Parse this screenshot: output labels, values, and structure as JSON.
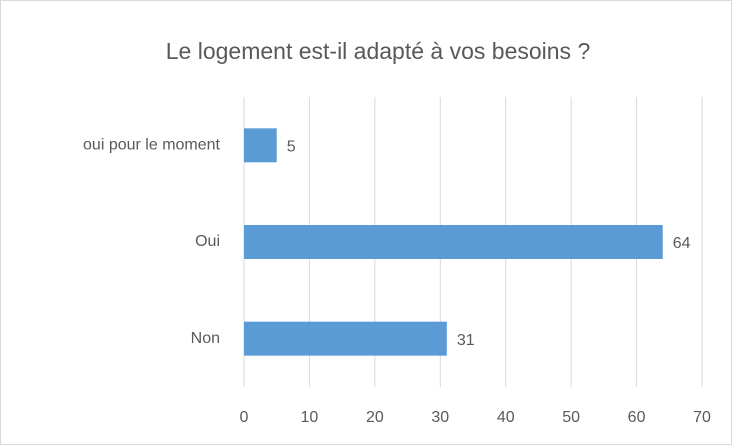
{
  "chart_data": {
    "type": "barh",
    "title": "Le logement est-il adapté à vos besoins ?",
    "categories": [
      "Non",
      "Oui",
      "oui pour le moment"
    ],
    "values": [
      31,
      64,
      5
    ],
    "color": "#5b9bd5",
    "xlim": [
      0,
      70
    ],
    "xticks": [
      0,
      10,
      20,
      30,
      40,
      50,
      60,
      70
    ],
    "grid": true
  }
}
